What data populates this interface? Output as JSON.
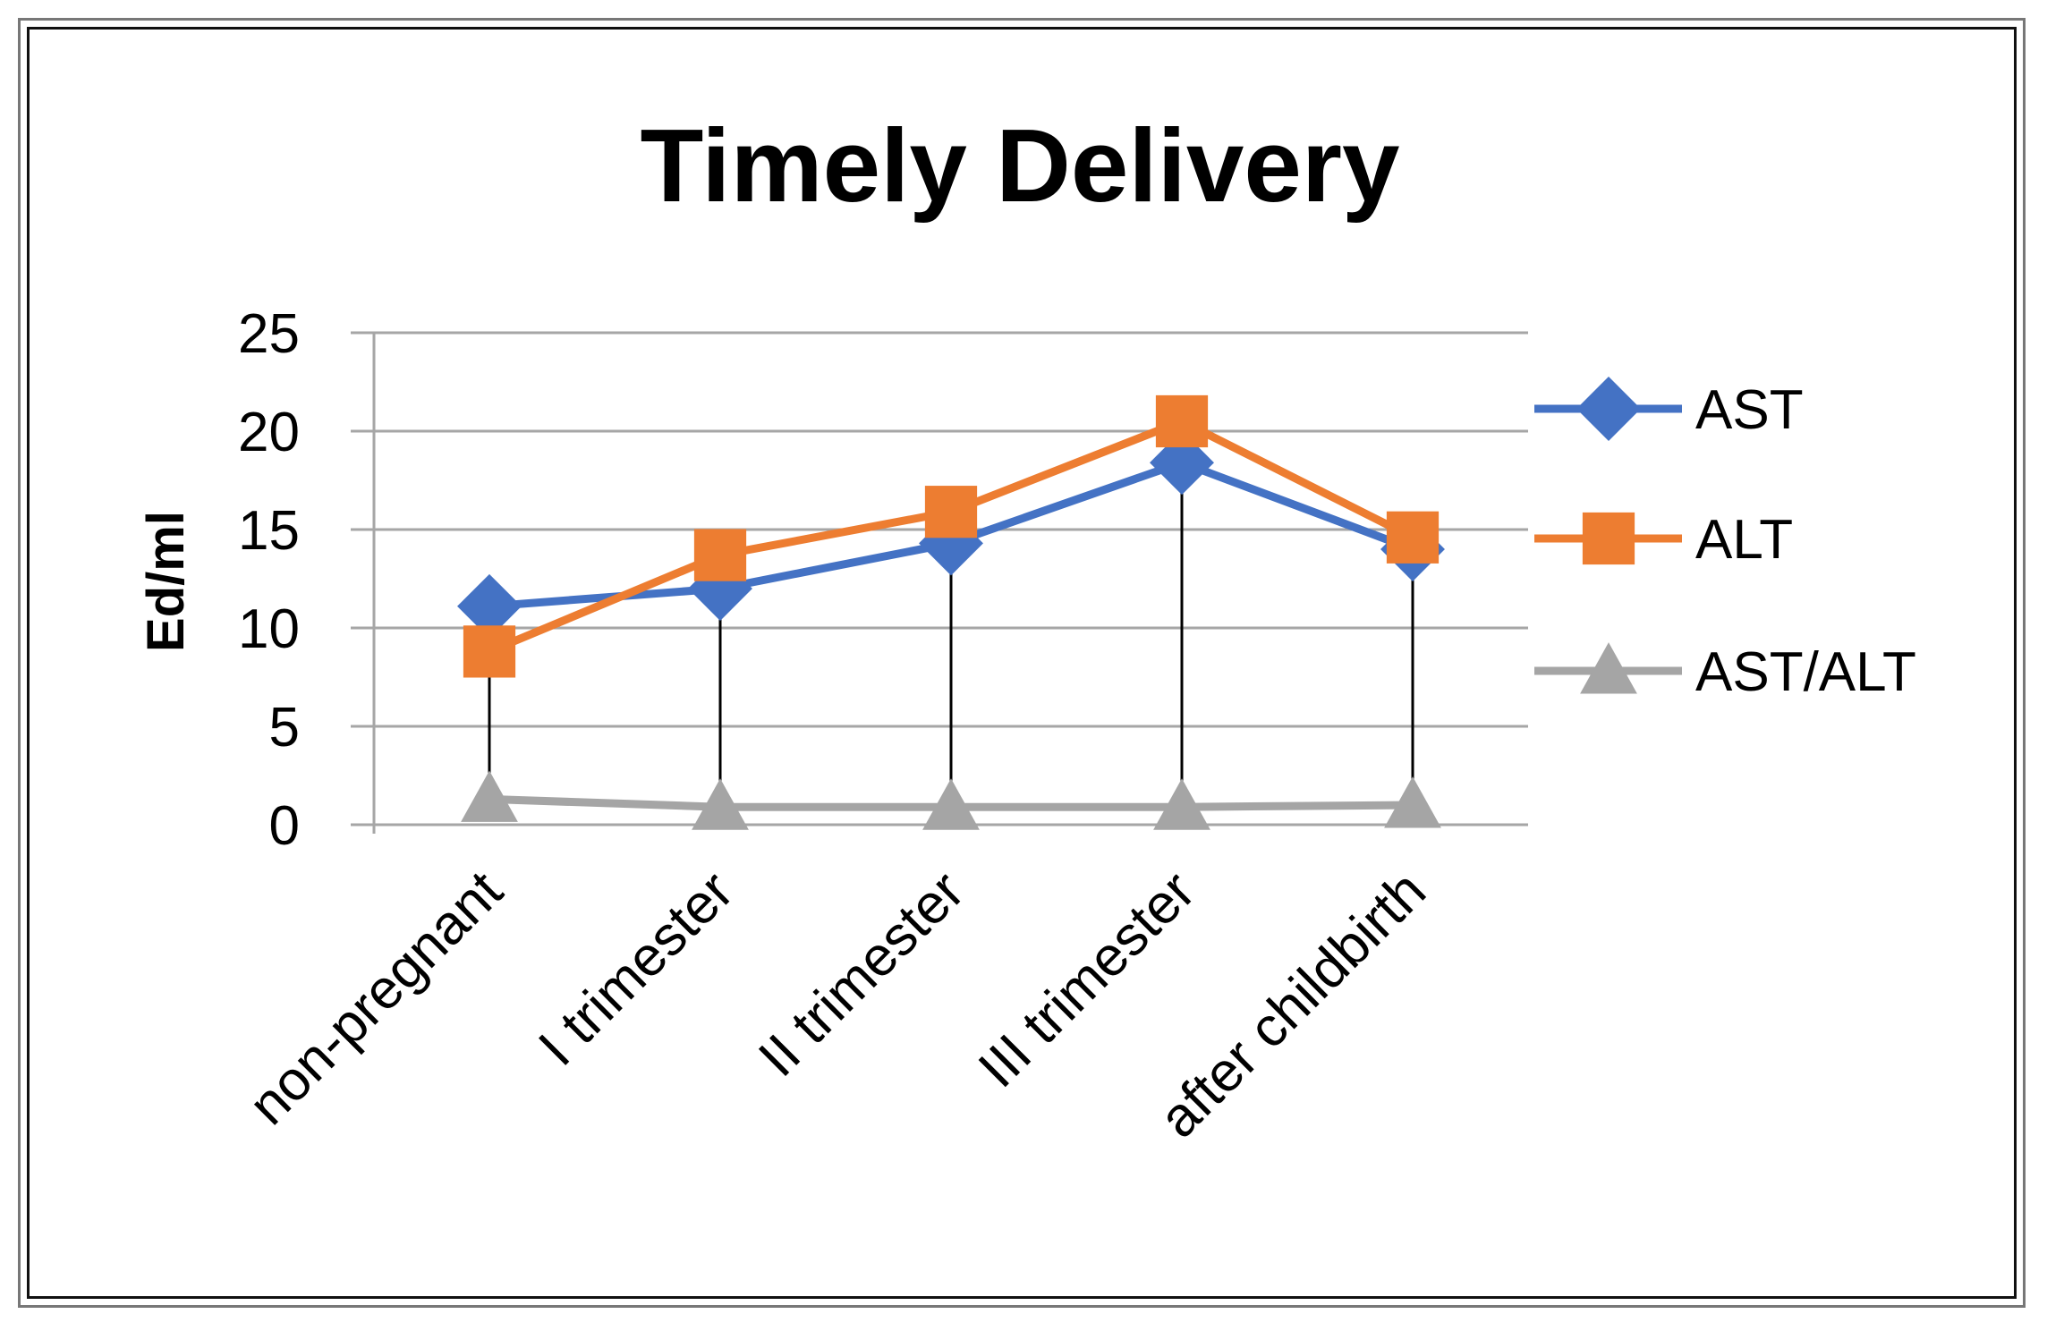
{
  "chart_data": {
    "type": "line",
    "title": "Timely Delivery",
    "xlabel": "",
    "ylabel": "Ed/ml",
    "categories": [
      "non-pregnant",
      "I trimester",
      "II trimester",
      "III trimester",
      "after childbirth"
    ],
    "ylim": [
      0,
      25
    ],
    "yticks": [
      "0",
      "5",
      "10",
      "15",
      "20",
      "25"
    ],
    "grid": true,
    "legend_position": "right",
    "series": [
      {
        "name": "AST",
        "values": [
          11.1,
          12.0,
          14.3,
          18.4,
          14.0
        ],
        "color": "#4472C4",
        "marker": "diamond"
      },
      {
        "name": "ALT",
        "values": [
          8.8,
          13.7,
          15.9,
          20.5,
          14.6
        ],
        "color": "#ED7D31",
        "marker": "square"
      },
      {
        "name": "AST/ALT",
        "values": [
          1.3,
          0.9,
          0.9,
          0.9,
          1.0
        ],
        "color": "#A5A5A5",
        "marker": "triangle"
      }
    ],
    "drop_lines": true,
    "drop_line_color": "#000000"
  }
}
